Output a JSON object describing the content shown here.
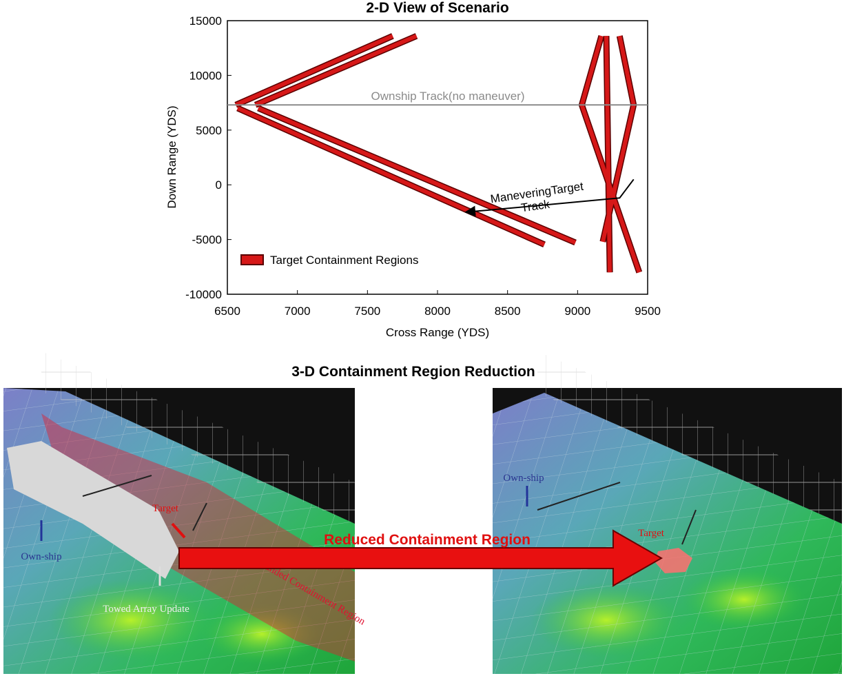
{
  "chart_data": {
    "type": "line",
    "title": "2-D View of Scenario",
    "x_label": "Cross Range (YDS)",
    "y_label": "Down Range (YDS)",
    "xlim": [
      6500,
      9500
    ],
    "xticks": [
      6500,
      7000,
      7500,
      8000,
      8500,
      9000,
      9500
    ],
    "ylim": [
      -10000,
      15000
    ],
    "yticks": [
      -10000,
      -5000,
      0,
      5000,
      10000,
      15000
    ],
    "legend": "lower left",
    "series": [
      {
        "name": "Target Containment Regions",
        "color": "#d61818",
        "x": [
          6560,
          7680,
          null,
          6700,
          7850,
          null,
          6574,
          8763,
          null,
          6721,
          8984,
          null,
          9205,
          9230,
          null,
          9170,
          9030,
          9440,
          null,
          9300,
          9400,
          9180
        ],
        "y": [
          7300,
          13600,
          null,
          7300,
          13600,
          null,
          7000,
          -5460,
          null,
          7000,
          -5280,
          null,
          13600,
          -8000,
          null,
          13600,
          7300,
          -8000,
          null,
          13600,
          7300,
          -5200
        ]
      }
    ],
    "tracks": [
      {
        "label": "Ownship Track(no maneuver)",
        "color": "#8a8a8a",
        "x": [
          6500,
          9500
        ],
        "y": [
          7300,
          7300
        ]
      },
      {
        "label": "ManeveringTarget Track",
        "color": "#000000",
        "x": [
          9400,
          9300,
          8800,
          8200
        ],
        "y": [
          500,
          -1200,
          -1800,
          -2500
        ]
      }
    ]
  },
  "figure_3d": {
    "title": "3-D Containment Region Reduction",
    "arrow_label": "Reduced Containment Region",
    "left_panel": {
      "own_ship": "Own-ship",
      "target": "Target",
      "towed_array": "Towed Array Update",
      "expanded": "Expanded Containment Region"
    },
    "right_panel": {
      "own_ship": "Own-ship",
      "target": "Target"
    }
  }
}
